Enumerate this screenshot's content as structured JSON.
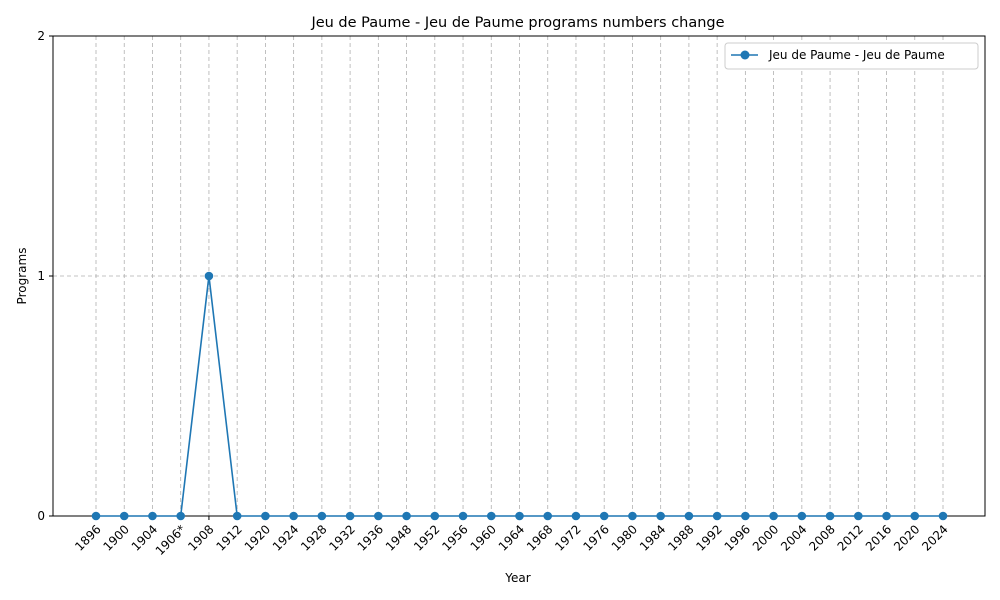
{
  "chart_data": {
    "type": "line",
    "title": "Jeu de Paume - Jeu de Paume programs numbers change",
    "xlabel": "Year",
    "ylabel": "Programs",
    "categories": [
      "1896",
      "1900",
      "1904",
      "1906*",
      "1908",
      "1912",
      "1920",
      "1924",
      "1928",
      "1932",
      "1936",
      "1948",
      "1952",
      "1956",
      "1960",
      "1964",
      "1968",
      "1972",
      "1976",
      "1980",
      "1984",
      "1988",
      "1992",
      "1996",
      "2000",
      "2004",
      "2008",
      "2012",
      "2016",
      "2020",
      "2024"
    ],
    "series": [
      {
        "name": "Jeu de Paume - Jeu de Paume",
        "color": "#1f77b4",
        "values": [
          0,
          0,
          0,
          0,
          1,
          0,
          0,
          0,
          0,
          0,
          0,
          0,
          0,
          0,
          0,
          0,
          0,
          0,
          0,
          0,
          0,
          0,
          0,
          0,
          0,
          0,
          0,
          0,
          0,
          0,
          0
        ]
      }
    ],
    "ylim": [
      0,
      2
    ],
    "yticks": [
      "0",
      "1",
      "2"
    ],
    "grid": true,
    "legend_position": "top-right"
  }
}
